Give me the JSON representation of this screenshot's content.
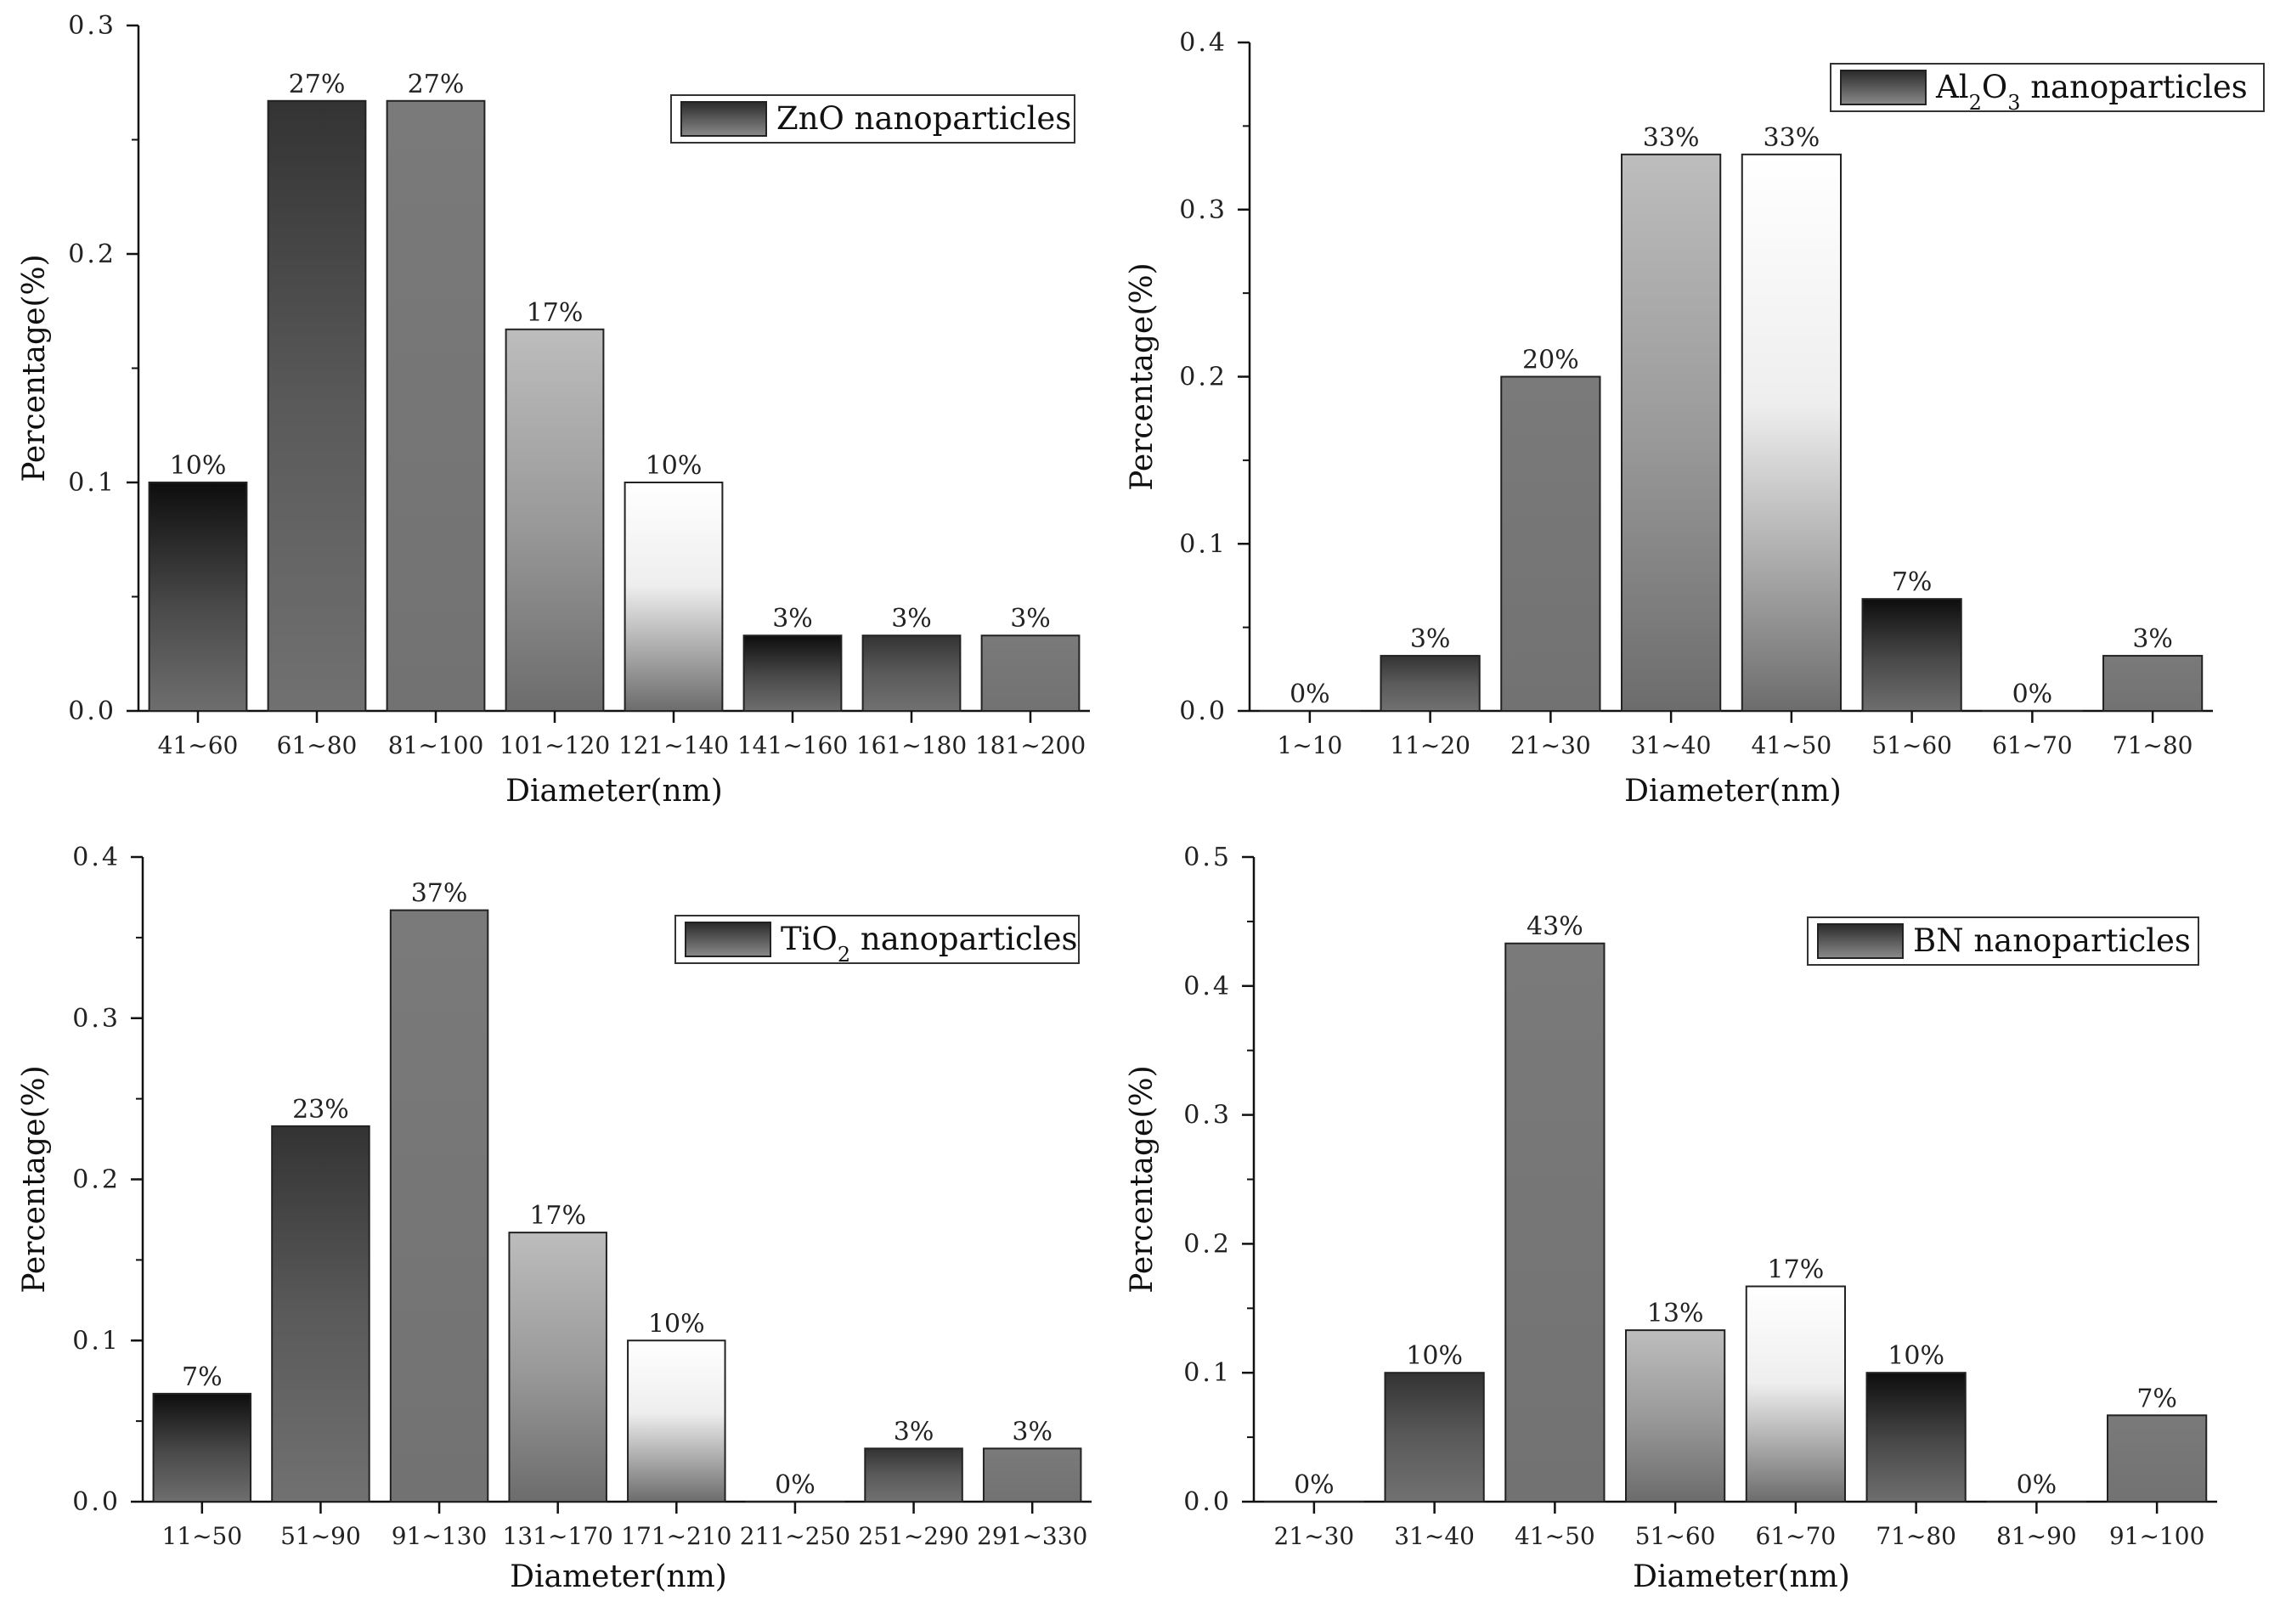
{
  "chart_data": [
    {
      "type": "bar",
      "legend": {
        "text": "ZnO nanoparticles",
        "parts": [
          {
            "t": "ZnO nanoparticles",
            "sub": false
          }
        ],
        "placement": "top-right"
      },
      "xlabel": "Diameter(nm)",
      "ylabel": "Percentage(%)",
      "ylim": [
        0,
        0.3
      ],
      "yticks": [
        "0.0",
        "0.1",
        "0.2",
        "0.3"
      ],
      "categories": [
        "41~60",
        "61~80",
        "81~100",
        "101~120",
        "121~140",
        "141~160",
        "161~180",
        "181~200"
      ],
      "values": [
        0.1,
        0.267,
        0.267,
        0.167,
        0.1,
        0.033,
        0.033,
        0.033
      ],
      "data_labels": [
        "10%",
        "27%",
        "27%",
        "17%",
        "10%",
        "3%",
        "3%",
        "3%"
      ]
    },
    {
      "type": "bar",
      "legend": {
        "text": "Al2O3 nanoparticles",
        "parts": [
          {
            "t": "Al",
            "sub": false
          },
          {
            "t": "2",
            "sub": true
          },
          {
            "t": "O",
            "sub": false
          },
          {
            "t": "3",
            "sub": true
          },
          {
            "t": " nanoparticles",
            "sub": false
          }
        ],
        "placement": "top-right"
      },
      "xlabel": "Diameter(nm)",
      "ylabel": "Percentage(%)",
      "ylim": [
        0,
        0.4
      ],
      "yticks": [
        "0.0",
        "0.1",
        "0.2",
        "0.3",
        "0.4"
      ],
      "categories": [
        "1~10",
        "11~20",
        "21~30",
        "31~40",
        "41~50",
        "51~60",
        "61~70",
        "71~80"
      ],
      "values": [
        0,
        0.033,
        0.2,
        0.333,
        0.333,
        0.067,
        0,
        0.033
      ],
      "data_labels": [
        "0%",
        "3%",
        "20%",
        "33%",
        "33%",
        "7%",
        "0%",
        "3%"
      ]
    },
    {
      "type": "bar",
      "legend": {
        "text": "TiO2 nanoparticles",
        "parts": [
          {
            "t": "TiO",
            "sub": false
          },
          {
            "t": "2",
            "sub": true
          },
          {
            "t": " nanoparticles",
            "sub": false
          }
        ],
        "placement": "top-right"
      },
      "xlabel": "Diameter(nm)",
      "ylabel": "Percentage(%)",
      "ylim": [
        0,
        0.4
      ],
      "yticks": [
        "0.0",
        "0.1",
        "0.2",
        "0.3",
        "0.4"
      ],
      "categories": [
        "11~50",
        "51~90",
        "91~130",
        "131~170",
        "171~210",
        "211~250",
        "251~290",
        "291~330"
      ],
      "values": [
        0.067,
        0.233,
        0.367,
        0.167,
        0.1,
        0,
        0.033,
        0.033
      ],
      "data_labels": [
        "7%",
        "23%",
        "37%",
        "17%",
        "10%",
        "0%",
        "3%",
        "3%"
      ]
    },
    {
      "type": "bar",
      "legend": {
        "text": "BN nanoparticles",
        "parts": [
          {
            "t": "BN nanoparticles",
            "sub": false
          }
        ],
        "placement": "top-right"
      },
      "xlabel": "Diameter(nm)",
      "ylabel": "Percentage(%)",
      "ylim": [
        0,
        0.5
      ],
      "yticks": [
        "0.0",
        "0.1",
        "0.2",
        "0.3",
        "0.4",
        "0.5"
      ],
      "categories": [
        "21~30",
        "31~40",
        "41~50",
        "51~60",
        "61~70",
        "71~80",
        "81~90",
        "91~100"
      ],
      "values": [
        0,
        0.1,
        0.433,
        0.133,
        0.167,
        0.1,
        0,
        0.067
      ],
      "data_labels": [
        "0%",
        "10%",
        "43%",
        "13%",
        "17%",
        "10%",
        "0%",
        "7%"
      ]
    }
  ]
}
